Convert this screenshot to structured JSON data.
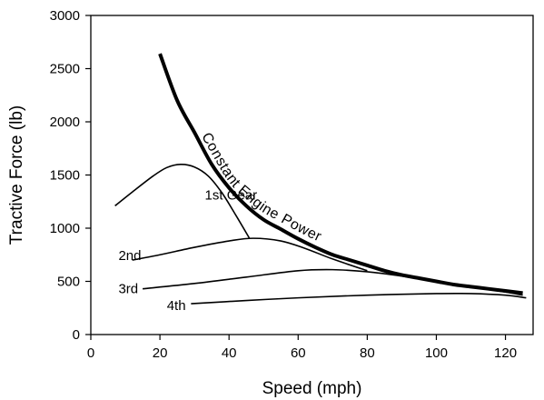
{
  "chart_data": {
    "type": "line",
    "xlabel": "Speed (mph)",
    "ylabel": "Tractive Force (lb)",
    "xlim": [
      0,
      128
    ],
    "ylim": [
      0,
      3000
    ],
    "xticks": [
      0,
      20,
      40,
      60,
      80,
      100,
      120
    ],
    "yticks": [
      0,
      500,
      1000,
      1500,
      2000,
      2500,
      3000
    ],
    "grid": false,
    "series": [
      {
        "name": "Constant Engine Power",
        "style": "bold",
        "x": [
          20,
          25,
          30,
          35,
          40,
          45,
          50,
          55,
          60,
          65,
          70,
          75,
          80,
          85,
          90,
          95,
          100,
          105,
          110,
          115,
          120,
          125
        ],
        "y": [
          2640,
          2200,
          1900,
          1600,
          1380,
          1210,
          1080,
          990,
          900,
          820,
          750,
          700,
          650,
          600,
          560,
          530,
          500,
          470,
          450,
          430,
          410,
          390
        ]
      },
      {
        "name": "1st Gear",
        "x": [
          7,
          12,
          18,
          22,
          26,
          30,
          34,
          38,
          42,
          46
        ],
        "y": [
          1210,
          1340,
          1490,
          1570,
          1600,
          1575,
          1490,
          1330,
          1120,
          900
        ]
      },
      {
        "name": "2nd",
        "x": [
          12,
          20,
          30,
          40,
          47,
          55,
          62,
          70,
          80
        ],
        "y": [
          700,
          750,
          820,
          880,
          905,
          880,
          810,
          710,
          600
        ]
      },
      {
        "name": "3rd",
        "x": [
          15,
          30,
          45,
          60,
          70,
          80,
          90,
          100,
          110,
          120,
          125
        ],
        "y": [
          430,
          480,
          540,
          600,
          610,
          590,
          550,
          500,
          450,
          400,
          370
        ]
      },
      {
        "name": "4th",
        "x": [
          29,
          45,
          60,
          80,
          100,
          110,
          120,
          126
        ],
        "y": [
          290,
          320,
          345,
          370,
          385,
          385,
          370,
          345
        ]
      }
    ],
    "annotations": [
      {
        "text": "1st Gear",
        "x": 33,
        "y": 1270
      },
      {
        "text": "2nd",
        "x": 8,
        "y": 700
      },
      {
        "text": "3rd",
        "x": 8,
        "y": 390
      },
      {
        "text": "4th",
        "x": 22,
        "y": 230
      },
      {
        "text": "Constant Engine Power",
        "x": 40,
        "y": 1800
      }
    ]
  }
}
